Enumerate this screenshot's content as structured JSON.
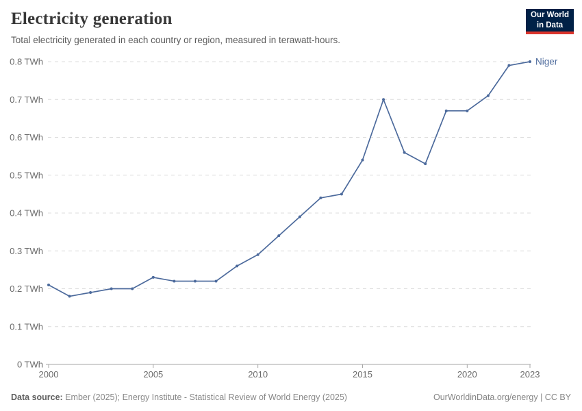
{
  "logo": {
    "line1": "Our World",
    "line2": "in Data"
  },
  "footer": {
    "source_label": "Data source:",
    "source_text": "Ember (2025); Energy Institute - Statistical Review of World Energy (2025)",
    "link": "OurWorldinData.org/energy | CC BY"
  },
  "chart_data": {
    "type": "line",
    "title": "Electricity generation",
    "subtitle": "Total electricity generated in each country or region, measured in terawatt-hours.",
    "unit": "TWh",
    "xlabel": "",
    "ylabel": "",
    "xlim": [
      2000,
      2023
    ],
    "ylim": [
      0,
      0.8
    ],
    "xticks": [
      2000,
      2005,
      2010,
      2015,
      2020,
      2023
    ],
    "yticks": [
      0,
      0.1,
      0.2,
      0.3,
      0.4,
      0.5,
      0.6,
      0.7,
      0.8
    ],
    "ytick_labels": [
      "0 TWh",
      "0.1 TWh",
      "0.2 TWh",
      "0.3 TWh",
      "0.4 TWh",
      "0.5 TWh",
      "0.6 TWh",
      "0.7 TWh",
      "0.8 TWh"
    ],
    "grid": "horizontal-dashed",
    "legend_position": "end-of-line-label",
    "axis_color": "#a5a5a5",
    "gridline_color": "#dcdcdc",
    "series": [
      {
        "name": "Niger",
        "color": "#4C6A9C",
        "x": [
          2000,
          2001,
          2002,
          2003,
          2004,
          2005,
          2006,
          2007,
          2008,
          2009,
          2010,
          2011,
          2012,
          2013,
          2014,
          2015,
          2016,
          2017,
          2018,
          2019,
          2020,
          2021,
          2022,
          2023
        ],
        "values": [
          0.21,
          0.18,
          0.19,
          0.2,
          0.2,
          0.23,
          0.22,
          0.22,
          0.22,
          0.26,
          0.29,
          0.34,
          0.39,
          0.44,
          0.45,
          0.54,
          0.7,
          0.56,
          0.53,
          0.67,
          0.67,
          0.71,
          0.79,
          0.8
        ]
      }
    ]
  }
}
